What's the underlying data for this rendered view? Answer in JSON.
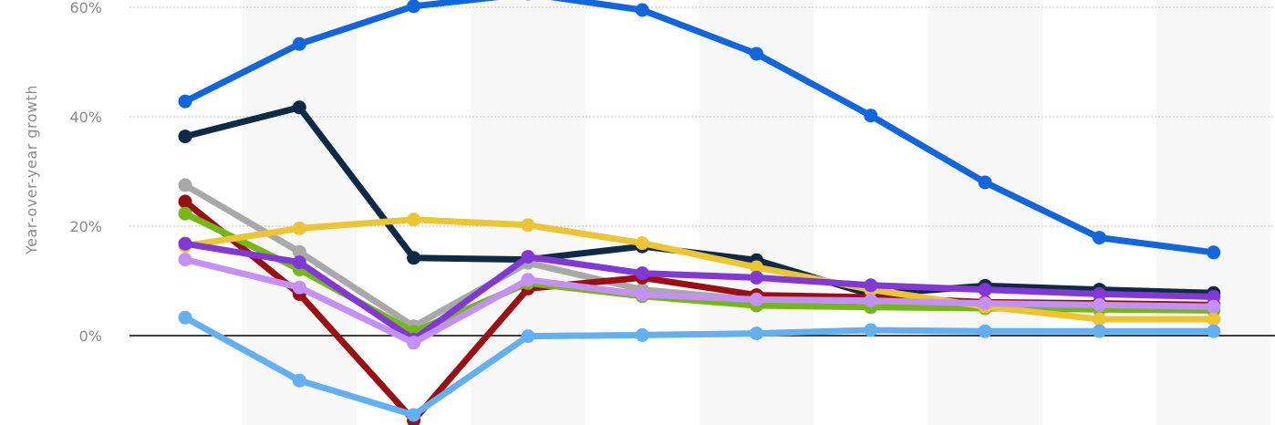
{
  "chart_data": {
    "type": "line",
    "ylabel": "Year-over-year growth",
    "yticks": [
      0,
      20,
      40,
      60
    ],
    "ytick_labels": [
      "0%",
      "20%",
      "40%",
      "60%"
    ],
    "ylim": [
      -16,
      61
    ],
    "grid": true,
    "point_count": 10,
    "series": [
      {
        "color": "#1166e0",
        "values": [
          42.8,
          53.3,
          60.2,
          62.5,
          59.5,
          51.5,
          40.2,
          28.0,
          17.9,
          15.2
        ]
      },
      {
        "color": "#0f2a47",
        "values": [
          36.4,
          41.7,
          14.2,
          13.9,
          16.3,
          13.8,
          7.5,
          9.1,
          8.4,
          7.8
        ]
      },
      {
        "color": "#a8a8a8",
        "values": [
          27.5,
          15.3,
          1.7,
          13.3,
          8.4,
          6.5,
          6.5,
          5.8,
          5.5,
          5.3
        ]
      },
      {
        "color": "#9b0f14",
        "values": [
          24.5,
          7.6,
          -15.5,
          8.6,
          10.6,
          7.4,
          7.0,
          6.1,
          5.9,
          5.6
        ]
      },
      {
        "color": "#74b817",
        "values": [
          22.3,
          12.1,
          0.7,
          9.6,
          7.2,
          5.5,
          5.2,
          5.0,
          4.8,
          4.6
        ]
      },
      {
        "color": "#ecc535",
        "values": [
          16.4,
          19.6,
          21.2,
          20.2,
          16.9,
          12.5,
          8.4,
          5.3,
          3.0,
          3.0
        ]
      },
      {
        "color": "#8238d6",
        "values": [
          16.8,
          13.4,
          -0.7,
          14.4,
          11.4,
          10.6,
          9.2,
          8.4,
          7.6,
          7.1
        ]
      },
      {
        "color": "#c390f5",
        "values": [
          13.9,
          8.8,
          -1.3,
          10.2,
          7.5,
          6.6,
          6.4,
          5.9,
          5.6,
          5.3
        ]
      },
      {
        "color": "#62aff2",
        "values": [
          3.3,
          -8.2,
          -14.5,
          -0.1,
          0.1,
          0.4,
          1.0,
          0.8,
          0.8,
          0.8
        ]
      }
    ]
  }
}
